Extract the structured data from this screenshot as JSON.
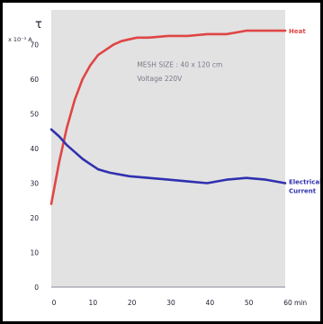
{
  "chart_data": {
    "type": "line",
    "y_axis_symbol": "τ",
    "y_axis_unit": "x 10⁻³ A",
    "x_axis_unit": "min",
    "xlim": [
      0,
      60
    ],
    "ylim": [
      0,
      80
    ],
    "x_ticks": [
      0,
      10,
      20,
      30,
      40,
      50,
      60
    ],
    "y_ticks": [
      0,
      10,
      20,
      30,
      40,
      50,
      60,
      70
    ],
    "plot_background": "#e2e2e2",
    "annotation_lines": [
      "MESH SIZE : 40 x 120 cm",
      "Voltage 220V"
    ],
    "series": [
      {
        "name": "Heat",
        "color": "#e04545",
        "x": [
          0,
          2,
          4,
          6,
          8,
          10,
          12,
          14,
          16,
          18,
          20,
          22,
          25,
          30,
          35,
          40,
          45,
          50,
          55,
          60
        ],
        "y": [
          24,
          36,
          46,
          54,
          60,
          64,
          67,
          68.5,
          70,
          71,
          71.5,
          72,
          72,
          72.5,
          72.5,
          73,
          73,
          74,
          74,
          74
        ]
      },
      {
        "name": "Electrical Current",
        "name_lines": [
          "Electrical",
          "Current"
        ],
        "color": "#3030b0",
        "x": [
          0,
          2,
          4,
          6,
          8,
          10,
          12,
          15,
          20,
          25,
          30,
          35,
          40,
          45,
          50,
          55,
          60
        ],
        "y": [
          45.5,
          43.5,
          41,
          39,
          37,
          35.5,
          34,
          33,
          32,
          31.5,
          31,
          30.5,
          30,
          31,
          31.5,
          31,
          30
        ]
      }
    ]
  }
}
